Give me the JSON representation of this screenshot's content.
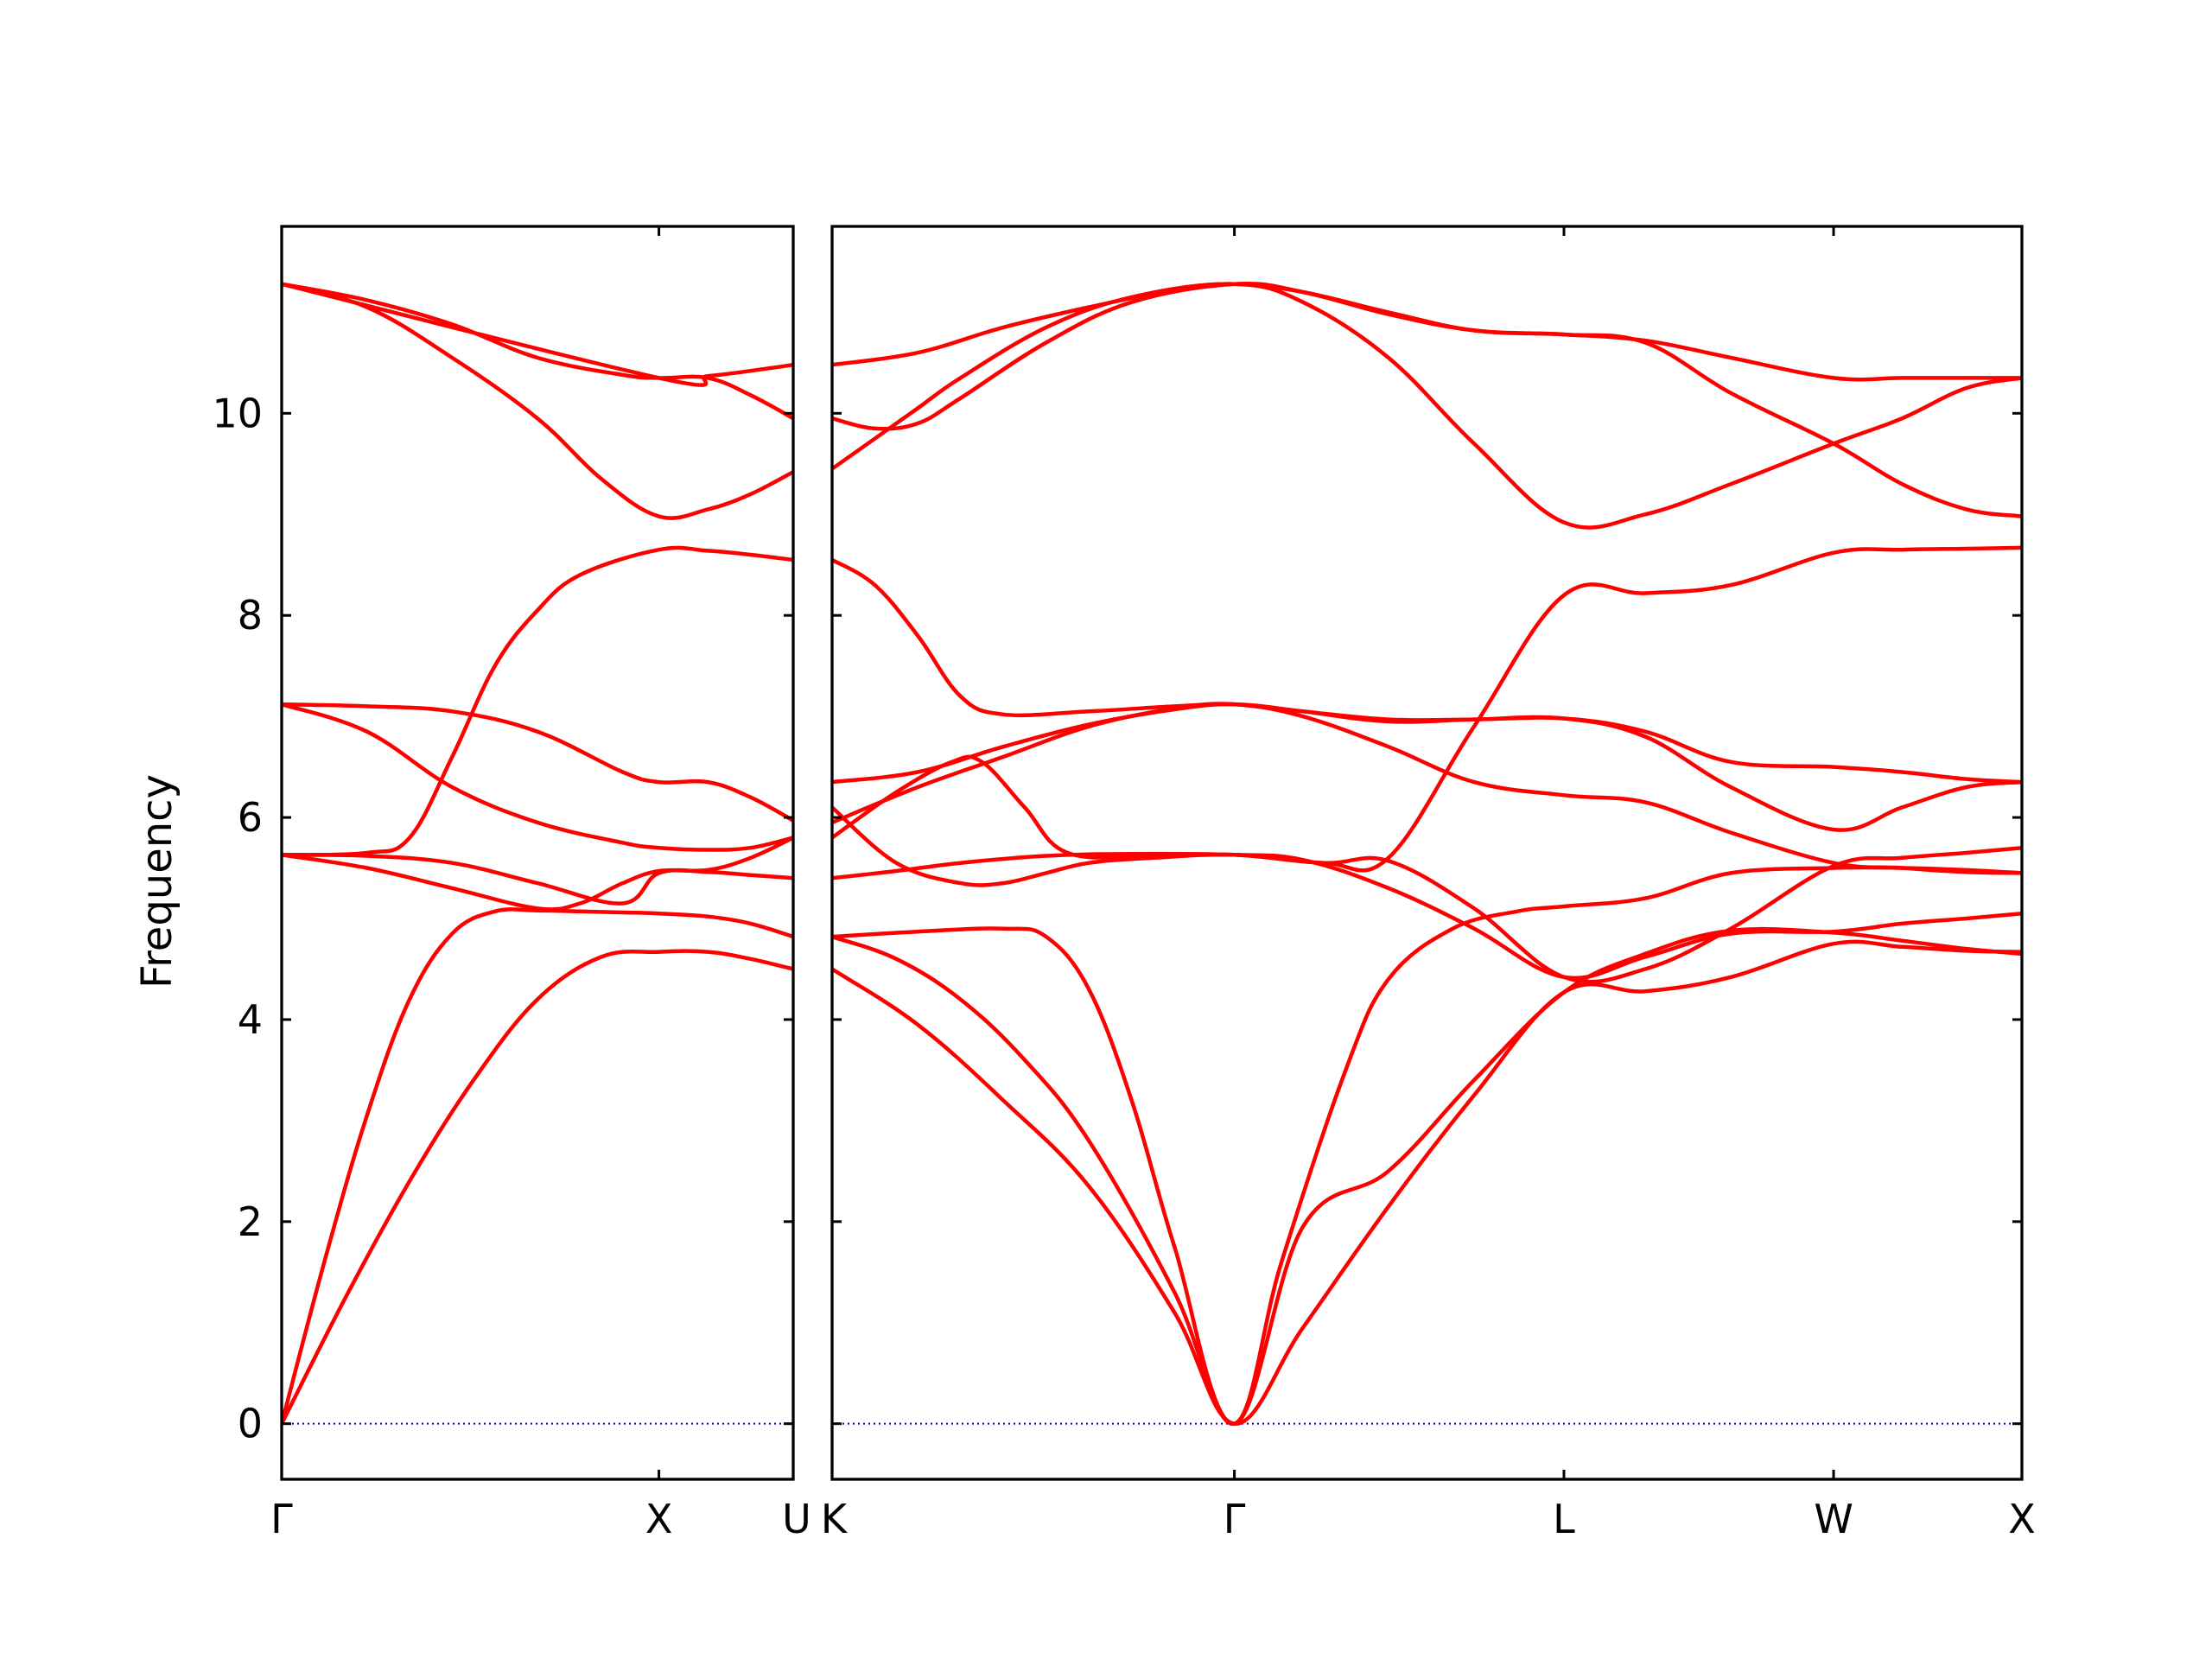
{
  "chart_data": {
    "type": "line",
    "ylabel": "Frequency",
    "ylim": [
      -0.55,
      11.85
    ],
    "yticks": [
      0,
      2,
      4,
      6,
      8,
      10
    ],
    "zero_line": true,
    "colors": {
      "bands": "#ff0000",
      "zero_line": "#0000cc",
      "frame": "#000000"
    },
    "panels": [
      {
        "name": "gamma-x-u",
        "xlim": [
          0,
          1.2
        ],
        "xticks": [
          {
            "pos": 0,
            "label": "Γ"
          },
          {
            "pos": 0.885,
            "label": "X"
          },
          {
            "pos": 1.2,
            "label": "U"
          }
        ],
        "series": [
          {
            "x": [
              0,
              0.15,
              0.3,
              0.45,
              0.6,
              0.75,
              0.885,
              1.0,
              1.1,
              1.2
            ],
            "y": [
              0,
              1.25,
              2.4,
              3.4,
              4.2,
              4.62,
              4.67,
              4.67,
              4.6,
              4.5
            ]
          },
          {
            "x": [
              0,
              0.1,
              0.2,
              0.3,
              0.4,
              0.5,
              0.6,
              0.7,
              0.8,
              0.885,
              1.0,
              1.1,
              1.2
            ],
            "y": [
              0,
              1.6,
              3.05,
              4.2,
              4.85,
              5.07,
              5.08,
              5.07,
              5.06,
              5.05,
              5.02,
              4.95,
              4.82
            ]
          },
          {
            "x": [
              0,
              0.2,
              0.4,
              0.6,
              0.7,
              0.8,
              0.885,
              1.0,
              1.1,
              1.2
            ],
            "y": [
              5.63,
              5.5,
              5.3,
              5.1,
              5.15,
              5.35,
              5.47,
              5.48,
              5.6,
              5.8
            ]
          },
          {
            "x": [
              0,
              0.2,
              0.4,
              0.6,
              0.8,
              0.885,
              1.0,
              1.1,
              1.2
            ],
            "y": [
              5.63,
              5.62,
              5.55,
              5.35,
              5.15,
              5.45,
              5.46,
              5.43,
              5.4
            ]
          },
          {
            "x": [
              0,
              0.2,
              0.3,
              0.4,
              0.5,
              0.6,
              0.7,
              0.885,
              1.0,
              1.1,
              1.2
            ],
            "y": [
              5.63,
              5.65,
              5.8,
              6.6,
              7.5,
              8.05,
              8.4,
              8.65,
              8.64,
              8.6,
              8.55
            ]
          },
          {
            "x": [
              0,
              0.2,
              0.4,
              0.6,
              0.8,
              0.885,
              1.0,
              1.1,
              1.2
            ],
            "y": [
              7.12,
              6.85,
              6.3,
              5.95,
              5.75,
              5.7,
              5.68,
              5.7,
              5.8
            ]
          },
          {
            "x": [
              0,
              0.2,
              0.4,
              0.6,
              0.8,
              0.885,
              1.0,
              1.1,
              1.2
            ],
            "y": [
              7.12,
              7.1,
              7.05,
              6.85,
              6.45,
              6.35,
              6.35,
              6.2,
              5.97
            ]
          },
          {
            "x": [
              0,
              0.2,
              0.4,
              0.6,
              0.75,
              0.885,
              1.0,
              1.1,
              1.2
            ],
            "y": [
              11.28,
              11.05,
              10.55,
              9.95,
              9.35,
              8.98,
              9.05,
              9.2,
              9.42
            ]
          },
          {
            "x": [
              0,
              0.2,
              0.4,
              0.6,
              0.8,
              0.885,
              1.0,
              1.1,
              1.2
            ],
            "y": [
              11.28,
              11.12,
              10.88,
              10.55,
              10.38,
              10.35,
              10.35,
              10.18,
              9.95
            ]
          },
          {
            "x": [
              0,
              0.885,
              1.0,
              1.1,
              1.2
            ],
            "y": [
              11.28,
              10.35,
              10.37,
              10.42,
              10.48
            ]
          }
        ]
      },
      {
        "name": "k-gamma-l-w-x",
        "xlim": [
          0,
          2.78
        ],
        "xticks": [
          {
            "pos": 0,
            "label": "K"
          },
          {
            "pos": 0.94,
            "label": "Γ"
          },
          {
            "pos": 1.71,
            "label": "L"
          },
          {
            "pos": 2.34,
            "label": "W"
          },
          {
            "pos": 2.78,
            "label": "X"
          }
        ],
        "series": [
          {
            "x": [
              0,
              0.2,
              0.4,
              0.6,
              0.8,
              0.94,
              1.1,
              1.3,
              1.5,
              1.71,
              1.9,
              2.1,
              2.34,
              2.5,
              2.65,
              2.78
            ],
            "y": [
              4.5,
              3.95,
              3.2,
              2.35,
              1.1,
              0,
              0.95,
              2.15,
              3.25,
              4.27,
              4.28,
              4.42,
              4.75,
              4.72,
              4.68,
              4.67
            ]
          },
          {
            "x": [
              0,
              0.15,
              0.3,
              0.45,
              0.6,
              0.8,
              0.94,
              1.05,
              1.2,
              1.3,
              1.45,
              1.6,
              1.71,
              1.9,
              2.1,
              2.34,
              2.5,
              2.65,
              2.78
            ],
            "y": [
              4.82,
              4.6,
              4.2,
              3.6,
              2.8,
              1.3,
              0,
              1.6,
              3.5,
              4.4,
              4.9,
              5.07,
              5.12,
              5.2,
              5.45,
              5.5,
              5.5,
              5.48,
              5.45
            ]
          },
          {
            "x": [
              0,
              0.2,
              0.4,
              0.5,
              0.6,
              0.7,
              0.8,
              0.94,
              1.1,
              1.3,
              1.5,
              1.71,
              1.9,
              2.1,
              2.34,
              2.5,
              2.65,
              2.78
            ],
            "y": [
              4.82,
              4.87,
              4.9,
              4.82,
              4.3,
              3.2,
              1.75,
              0,
              1.95,
              2.5,
              3.4,
              4.27,
              4.65,
              4.88,
              4.86,
              4.78,
              4.7,
              4.65
            ]
          },
          {
            "x": [
              0,
              0.15,
              0.3,
              0.5,
              0.7,
              0.94,
              1.1,
              1.3,
              1.5,
              1.71,
              1.9,
              2.1,
              2.34,
              2.5,
              2.65,
              2.78
            ],
            "y": [
              5.4,
              5.47,
              5.55,
              5.62,
              5.64,
              5.63,
              5.58,
              5.3,
              4.9,
              4.42,
              4.62,
              4.85,
              4.87,
              4.95,
              5.0,
              5.05
            ]
          },
          {
            "x": [
              0,
              0.15,
              0.3,
              0.4,
              0.5,
              0.6,
              0.75,
              0.94,
              1.15,
              1.3,
              1.5,
              1.71,
              1.9,
              2.1,
              2.34,
              2.5,
              2.65,
              2.78
            ],
            "y": [
              6.1,
              5.55,
              5.35,
              5.35,
              5.45,
              5.55,
              5.6,
              5.63,
              5.55,
              5.6,
              6.9,
              8.2,
              8.22,
              8.3,
              8.62,
              8.65,
              8.66,
              8.67
            ]
          },
          {
            "x": [
              0,
              0.15,
              0.28,
              0.35,
              0.45,
              0.55,
              0.75,
              0.94,
              1.15,
              1.3,
              1.5,
              1.71,
              1.9,
              2.1,
              2.34,
              2.5,
              2.65,
              2.78
            ],
            "y": [
              5.8,
              6.25,
              6.55,
              6.55,
              6.1,
              5.65,
              5.62,
              5.63,
              5.55,
              5.57,
              5.1,
              4.42,
              4.5,
              4.9,
              5.52,
              5.6,
              5.65,
              5.7
            ]
          },
          {
            "x": [
              0,
              0.2,
              0.4,
              0.6,
              0.8,
              0.94,
              1.1,
              1.3,
              1.5,
              1.71,
              1.9,
              2.1,
              2.34,
              2.5,
              2.65,
              2.78
            ],
            "y": [
              5.95,
              6.3,
              6.6,
              6.9,
              7.08,
              7.12,
              7.0,
              6.7,
              6.35,
              6.22,
              6.15,
              5.85,
              5.55,
              5.5,
              5.46,
              5.45
            ]
          },
          {
            "x": [
              0,
              0.2,
              0.4,
              0.6,
              0.8,
              0.94,
              1.1,
              1.3,
              1.5,
              1.71,
              1.9,
              2.1,
              2.34,
              2.5,
              2.65,
              2.78
            ],
            "y": [
              6.35,
              6.45,
              6.7,
              6.92,
              7.07,
              7.12,
              7.05,
              6.95,
              6.97,
              6.98,
              6.8,
              6.3,
              5.88,
              6.1,
              6.3,
              6.35
            ]
          },
          {
            "x": [
              0,
              0.1,
              0.2,
              0.3,
              0.4,
              0.6,
              0.8,
              0.94,
              1.1,
              1.3,
              1.5,
              1.71,
              1.9,
              2.1,
              2.34,
              2.5,
              2.65,
              2.78
            ],
            "y": [
              8.55,
              8.3,
              7.8,
              7.2,
              7.02,
              7.05,
              7.1,
              7.12,
              7.05,
              6.97,
              6.97,
              6.98,
              6.85,
              6.55,
              6.5,
              6.45,
              6.38,
              6.35
            ]
          },
          {
            "x": [
              0,
              0.1,
              0.2,
              0.3,
              0.5,
              0.7,
              0.94,
              1.1,
              1.3,
              1.5,
              1.71,
              1.9,
              2.1,
              2.34,
              2.5,
              2.65,
              2.78
            ],
            "y": [
              9.45,
              9.75,
              10.05,
              10.35,
              10.85,
              11.15,
              11.28,
              11.1,
              10.55,
              9.7,
              8.92,
              9.0,
              9.3,
              9.7,
              9.95,
              10.25,
              10.35
            ]
          },
          {
            "x": [
              0,
              0.1,
              0.2,
              0.3,
              0.5,
              0.7,
              0.94,
              1.1,
              1.3,
              1.5,
              1.71,
              1.9,
              2.1,
              2.34,
              2.5,
              2.65,
              2.78
            ],
            "y": [
              9.95,
              9.85,
              9.9,
              10.15,
              10.7,
              11.1,
              11.28,
              11.2,
              10.98,
              10.82,
              10.78,
              10.7,
              10.2,
              9.7,
              9.3,
              9.05,
              8.98
            ]
          },
          {
            "x": [
              0,
              0.2,
              0.4,
              0.6,
              0.8,
              0.94,
              1.1,
              1.3,
              1.5,
              1.71,
              1.9,
              2.1,
              2.34,
              2.5,
              2.65,
              2.78
            ],
            "y": [
              10.48,
              10.6,
              10.85,
              11.05,
              11.22,
              11.28,
              11.2,
              11.0,
              10.82,
              10.78,
              10.72,
              10.55,
              10.35,
              10.35,
              10.35,
              10.35
            ]
          }
        ]
      }
    ]
  }
}
